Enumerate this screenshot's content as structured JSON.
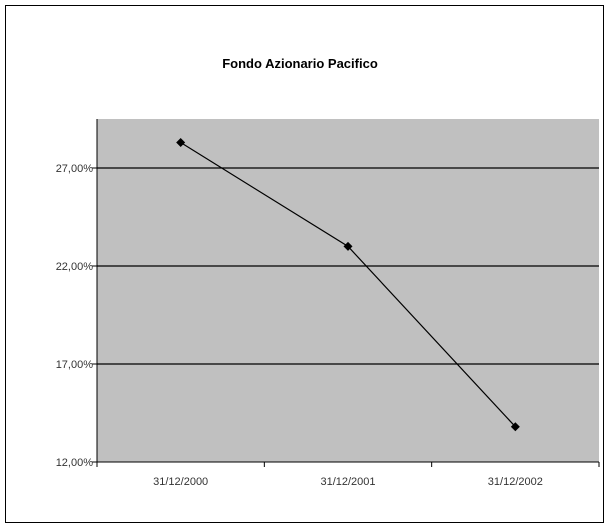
{
  "chart_data": {
    "type": "line",
    "title": "Fondo Azionario Pacifico",
    "categories": [
      "31/12/2000",
      "31/12/2001",
      "31/12/2002"
    ],
    "series": [
      {
        "values": [
          28.3,
          23.0,
          13.8
        ]
      }
    ],
    "y_tick_labels": [
      "12,00%",
      "17,00%",
      "22,00%",
      "27,00%"
    ],
    "y_ticks": [
      12,
      17,
      22,
      27
    ],
    "ylim": [
      12,
      29.5
    ],
    "grid": true,
    "legend": "none",
    "colors": {
      "plot_background": "#c0c0c0",
      "gridline": "#000000",
      "line": "#000000",
      "marker": "#000000",
      "frame": "#000000"
    }
  }
}
